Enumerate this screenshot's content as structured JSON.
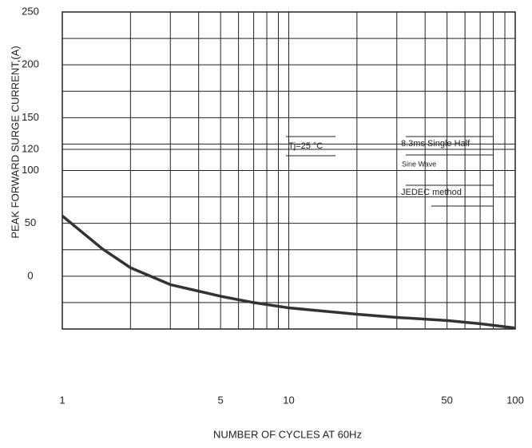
{
  "chart_data": {
    "type": "line",
    "x_label": "NUMBER OF CYCLES AT 60Hz",
    "y_label": "PEAK FORWARD SURGE CURRENT,(A)",
    "x": [
      1,
      1.5,
      2,
      3,
      5,
      7,
      10,
      20,
      30,
      50,
      70,
      100
    ],
    "series": [
      {
        "color": "#333333",
        "values": [
          57,
          26,
          8,
          -8,
          -19,
          -25,
          -30,
          -36,
          -39,
          -42,
          -45,
          -49
        ]
      }
    ],
    "xscale": "log",
    "xlim": [
      1,
      100
    ],
    "xticks": [
      1,
      5,
      10,
      50,
      100
    ],
    "minor_xticks": [
      2,
      3,
      4,
      6,
      7,
      8,
      9,
      20,
      30,
      40,
      60,
      70,
      80,
      90
    ],
    "ylim": [
      -50,
      250
    ],
    "yticks": [
      0,
      50,
      100,
      120,
      150,
      200,
      250
    ],
    "minor_yticks": [
      -25,
      25,
      75,
      125,
      175,
      225
    ],
    "grid": true,
    "annotations": [
      "Tj=25 °C",
      "8.3ms Single Half",
      "Sine Wave",
      "JEDEC method"
    ]
  }
}
